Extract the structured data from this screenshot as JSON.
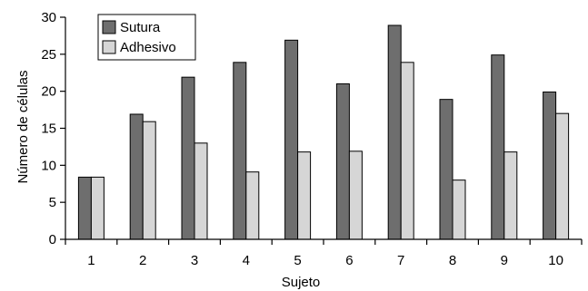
{
  "chart_data": {
    "type": "bar",
    "categories": [
      "1",
      "2",
      "3",
      "4",
      "5",
      "6",
      "7",
      "8",
      "9",
      "10"
    ],
    "series": [
      {
        "name": "Sutura",
        "color": "#6e6e6e",
        "values": [
          8.4,
          16.9,
          21.9,
          23.9,
          26.9,
          21.0,
          28.9,
          18.9,
          24.9,
          19.9
        ]
      },
      {
        "name": "Adhesivo",
        "color": "#d6d6d6",
        "values": [
          8.4,
          15.9,
          13.0,
          9.1,
          11.8,
          11.9,
          23.9,
          8.0,
          11.8,
          17.0
        ]
      }
    ],
    "xlabel": "Sujeto",
    "ylabel": "Número de células",
    "ylim": [
      0,
      30
    ],
    "yticks": [
      0,
      5,
      10,
      15,
      20,
      25,
      30
    ],
    "grid": false,
    "legend": "top-left"
  }
}
